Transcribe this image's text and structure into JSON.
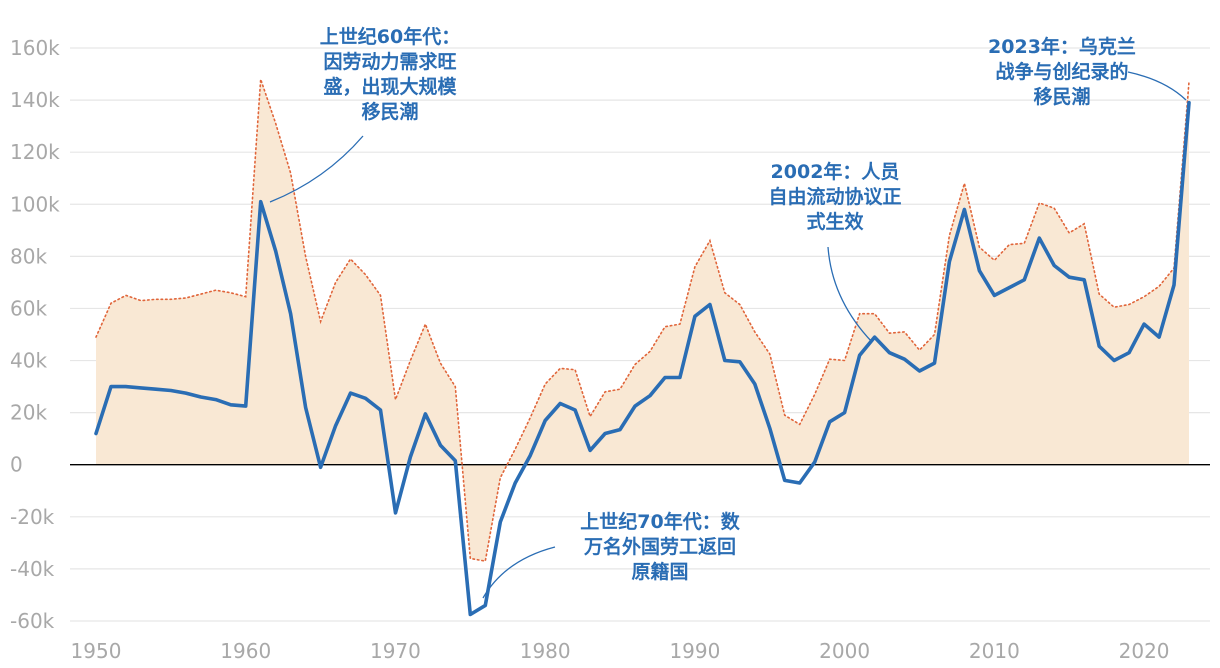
{
  "chart_data": {
    "type": "line",
    "title": "",
    "xlabel": "",
    "ylabel": "",
    "xlim": [
      1950,
      2023
    ],
    "ylim": [
      -60000,
      160000
    ],
    "grid": true,
    "y_ticks": [
      {
        "value": -60000,
        "label": "-60k"
      },
      {
        "value": -40000,
        "label": "-40k"
      },
      {
        "value": -20000,
        "label": "-20k"
      },
      {
        "value": 0,
        "label": "0"
      },
      {
        "value": 20000,
        "label": "20k"
      },
      {
        "value": 40000,
        "label": "40k"
      },
      {
        "value": 60000,
        "label": "60k"
      },
      {
        "value": 80000,
        "label": "80k"
      },
      {
        "value": 100000,
        "label": "100k"
      },
      {
        "value": 120000,
        "label": "120k"
      },
      {
        "value": 140000,
        "label": "140k"
      },
      {
        "value": 160000,
        "label": "160k"
      }
    ],
    "x_ticks": [
      {
        "value": 1950,
        "label": "1950"
      },
      {
        "value": 1960,
        "label": "1960"
      },
      {
        "value": 1970,
        "label": "1970"
      },
      {
        "value": 1980,
        "label": "1980"
      },
      {
        "value": 1990,
        "label": "1990"
      },
      {
        "value": 2000,
        "label": "2000"
      },
      {
        "value": 2010,
        "label": "2010"
      },
      {
        "value": 2020,
        "label": "2020"
      }
    ],
    "series": [
      {
        "name": "net_migration",
        "style": "solid",
        "color": "#2a6db4",
        "x": [
          1950,
          1951,
          1952,
          1953,
          1954,
          1955,
          1956,
          1957,
          1958,
          1959,
          1960,
          1961,
          1962,
          1963,
          1964,
          1965,
          1966,
          1967,
          1968,
          1969,
          1970,
          1971,
          1972,
          1973,
          1974,
          1975,
          1976,
          1977,
          1978,
          1979,
          1980,
          1981,
          1982,
          1983,
          1984,
          1985,
          1986,
          1987,
          1988,
          1989,
          1990,
          1991,
          1992,
          1993,
          1994,
          1995,
          1996,
          1997,
          1998,
          1999,
          2000,
          2001,
          2002,
          2003,
          2004,
          2005,
          2006,
          2007,
          2008,
          2009,
          2010,
          2011,
          2012,
          2013,
          2014,
          2015,
          2016,
          2017,
          2018,
          2019,
          2020,
          2021,
          2022,
          2023
        ],
        "values": [
          12000,
          30000,
          30000,
          29500,
          29000,
          28500,
          27500,
          26000,
          25000,
          23000,
          22500,
          101000,
          82000,
          58000,
          22000,
          -1000,
          15000,
          27500,
          25500,
          21000,
          -18500,
          3000,
          19500,
          7500,
          1500,
          -57500,
          -54000,
          -22000,
          -7000,
          3500,
          17000,
          23500,
          21000,
          5500,
          12000,
          13500,
          22500,
          26500,
          33500,
          33500,
          57000,
          61500,
          40000,
          39500,
          31000,
          14000,
          -6000,
          -7000,
          1000,
          16500,
          20000,
          42000,
          49000,
          43000,
          40500,
          36000,
          39000,
          78000,
          98000,
          74500,
          65000,
          68000,
          71000,
          87000,
          76500,
          72000,
          71000,
          45500,
          40000,
          43000,
          54000,
          49000,
          69000,
          139000
        ]
      },
      {
        "name": "upper_envelope",
        "style": "dotted",
        "color": "#e0653a",
        "x": [
          1950,
          1951,
          1952,
          1953,
          1954,
          1955,
          1956,
          1957,
          1958,
          1959,
          1960,
          1961,
          1962,
          1963,
          1964,
          1965,
          1966,
          1967,
          1968,
          1969,
          1970,
          1971,
          1972,
          1973,
          1974,
          1975,
          1976,
          1977,
          1978,
          1979,
          1980,
          1981,
          1982,
          1983,
          1984,
          1985,
          1986,
          1987,
          1988,
          1989,
          1990,
          1991,
          1992,
          1993,
          1994,
          1995,
          1996,
          1997,
          1998,
          1999,
          2000,
          2001,
          2002,
          2003,
          2004,
          2005,
          2006,
          2007,
          2008,
          2009,
          2010,
          2011,
          2012,
          2013,
          2014,
          2015,
          2016,
          2017,
          2018,
          2019,
          2020,
          2021,
          2022,
          2023
        ],
        "values": [
          49000,
          62000,
          65000,
          63000,
          63500,
          63500,
          64000,
          65500,
          67000,
          66000,
          64500,
          148000,
          131000,
          112000,
          80000,
          55000,
          70000,
          79000,
          73000,
          65000,
          25000,
          40000,
          54000,
          39000,
          30000,
          -36000,
          -37000,
          -5000,
          6000,
          18000,
          31000,
          37000,
          36500,
          18500,
          28000,
          29000,
          38500,
          43500,
          53000,
          54000,
          76000,
          86000,
          66000,
          61500,
          51000,
          42500,
          19000,
          15500,
          27000,
          40500,
          40000,
          58000,
          58000,
          50500,
          51000,
          44000,
          50000,
          88000,
          108000,
          83500,
          78500,
          84500,
          85000,
          100500,
          98500,
          89000,
          92500,
          65500,
          60500,
          61500,
          64500,
          68500,
          75500,
          147000
        ]
      }
    ],
    "annotations": [
      {
        "lines": [
          "上世纪60年代：",
          "因劳动力需求旺",
          "盛，出现大规模",
          "移民潮"
        ],
        "x": 1961,
        "y": 101000
      },
      {
        "lines": [
          "上世纪70年代：数",
          "万名外国劳工返回",
          "原籍国"
        ],
        "x": 1975.5,
        "y": -51000
      },
      {
        "lines": [
          "2002年：人员",
          "自由流动协议正",
          "式生效"
        ],
        "x": 2002,
        "y": 49000
      },
      {
        "lines": [
          "2023年：乌克兰",
          "战争与创纪录的",
          "移民潮"
        ],
        "x": 2023,
        "y": 139000
      }
    ],
    "colors": {
      "line": "#2a6db4",
      "dotted": "#e0653a",
      "fill": "#f9e8d4",
      "grid": "#e6e6e6",
      "zero_line": "#000000",
      "tick_text": "#a8a8a8",
      "annotation_text": "#2a6db4"
    }
  }
}
